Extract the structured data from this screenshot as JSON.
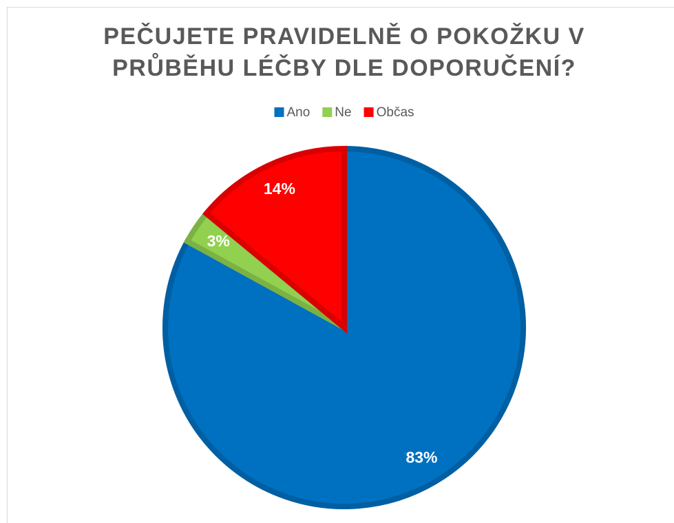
{
  "chart_data": {
    "type": "pie",
    "title": "PEČUJETE PRAVIDELNĚ O POKOŽKU V PRŮBĚHU LÉČBY DLE DOPORUČENÍ?",
    "categories": [
      "Ano",
      "Ne",
      "Občas"
    ],
    "values": [
      83,
      3,
      14
    ],
    "value_labels": [
      "83%",
      "3%",
      "14%"
    ],
    "colors": [
      "#0070c0",
      "#92d050",
      "#ff0000"
    ],
    "legend": "top"
  }
}
